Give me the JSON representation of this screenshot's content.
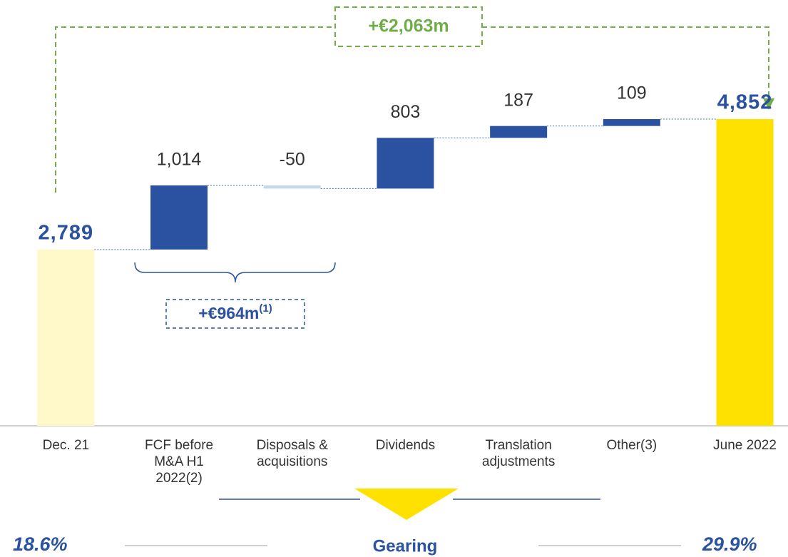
{
  "chart_data": {
    "type": "waterfall",
    "categories": [
      "Dec. 21",
      "FCF before M&A H1 2022(2)",
      "Disposals & acquisitions",
      "Dividends",
      "Translation adjustments",
      "Other(3)",
      "June 2022"
    ],
    "values": [
      2789,
      1014,
      -50,
      803,
      187,
      109,
      4852
    ],
    "value_labels": [
      "2,789",
      "1,014",
      "-50",
      "803",
      "187",
      "109",
      "4,852"
    ],
    "is_total": [
      true,
      false,
      false,
      false,
      false,
      false,
      true
    ],
    "colors": [
      "#fff8c8",
      "#2a52a0",
      "#c8d6ee",
      "#2a52a0",
      "#2a52a0",
      "#2a52a0",
      "#ffe100"
    ],
    "annotations": {
      "total_change": "+€2,063m",
      "subtotal_change": {
        "text": "+€964m",
        "sup": "(1)"
      }
    },
    "gearing": {
      "title": "Gearing",
      "start": "18.6%",
      "end": "29.9%"
    }
  }
}
